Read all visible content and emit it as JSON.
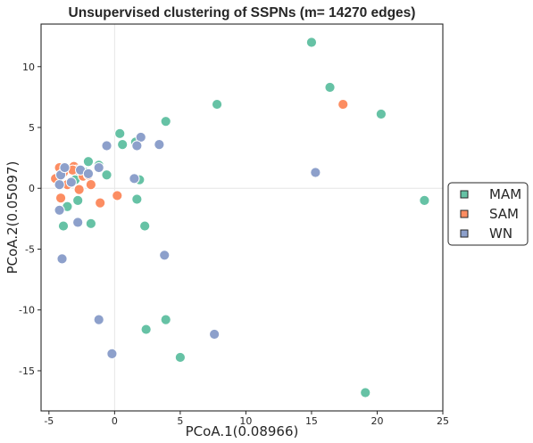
{
  "chart_data": {
    "type": "scatter",
    "title": "Unsupervised clustering of SSPNs (m= 14270 edges)",
    "xlabel": "PCoA.1(0.08966)",
    "ylabel": "PCoA.2(0.05097)",
    "xlim": [
      -5.6,
      25
    ],
    "ylim": [
      -18.3,
      13.5
    ],
    "xticks": [
      "-5",
      "0",
      "5",
      "10",
      "15",
      "20",
      "25"
    ],
    "xtick_values": [
      -5,
      0,
      5,
      10,
      15,
      20,
      25
    ],
    "yticks": [
      "-15",
      "-10",
      "-5",
      "0",
      "5",
      "10"
    ],
    "ytick_values": [
      -15,
      -10,
      -5,
      0,
      5,
      10
    ],
    "reference_lines": {
      "x": 0,
      "y": 0
    },
    "grid": false,
    "legend_position": "right",
    "series": [
      {
        "name": "MAM",
        "color": "#66c2a5",
        "points": [
          [
            15.0,
            12.0
          ],
          [
            16.4,
            8.3
          ],
          [
            20.3,
            6.1
          ],
          [
            7.8,
            6.9
          ],
          [
            23.6,
            -1.0
          ],
          [
            0.4,
            4.5
          ],
          [
            3.9,
            5.5
          ],
          [
            0.6,
            3.6
          ],
          [
            1.6,
            3.8
          ],
          [
            -0.6,
            1.1
          ],
          [
            -1.2,
            1.9
          ],
          [
            -2.0,
            2.2
          ],
          [
            1.9,
            0.7
          ],
          [
            1.7,
            -0.9
          ],
          [
            2.3,
            -3.1
          ],
          [
            -3.6,
            -1.5
          ],
          [
            -2.8,
            -1.0
          ],
          [
            -3.9,
            -3.1
          ],
          [
            -1.8,
            -2.9
          ],
          [
            3.9,
            -10.8
          ],
          [
            2.4,
            -11.6
          ],
          [
            5.0,
            -13.9
          ],
          [
            19.1,
            -16.8
          ],
          [
            -3.0,
            0.7
          ],
          [
            -2.2,
            1.3
          ]
        ]
      },
      {
        "name": "SAM",
        "color": "#fc8d62",
        "points": [
          [
            17.4,
            6.9
          ],
          [
            -4.2,
            1.7
          ],
          [
            -3.1,
            1.8
          ],
          [
            -2.9,
            1.5
          ],
          [
            -4.5,
            0.8
          ],
          [
            -3.6,
            0.3
          ],
          [
            -2.7,
            -0.1
          ],
          [
            -1.8,
            0.3
          ],
          [
            -4.1,
            -0.8
          ],
          [
            -1.1,
            -1.2
          ],
          [
            0.2,
            -0.6
          ],
          [
            -3.2,
            1.5
          ],
          [
            -2.4,
            1.0
          ],
          [
            -3.9,
            1.3
          ],
          [
            -2.0,
            1.1
          ]
        ]
      },
      {
        "name": "WN",
        "color": "#8da0cb",
        "points": [
          [
            15.3,
            1.3
          ],
          [
            2.0,
            4.2
          ],
          [
            -0.6,
            3.5
          ],
          [
            1.7,
            3.5
          ],
          [
            3.4,
            3.6
          ],
          [
            -1.2,
            1.7
          ],
          [
            1.5,
            0.8
          ],
          [
            -4.2,
            0.3
          ],
          [
            -4.1,
            1.1
          ],
          [
            -3.8,
            1.7
          ],
          [
            -2.6,
            1.5
          ],
          [
            -3.3,
            0.5
          ],
          [
            -4.2,
            -1.8
          ],
          [
            -2.8,
            -2.8
          ],
          [
            -4.0,
            -5.8
          ],
          [
            3.8,
            -5.5
          ],
          [
            -1.2,
            -10.8
          ],
          [
            7.6,
            -12.0
          ],
          [
            -0.2,
            -13.6
          ],
          [
            -2.0,
            1.2
          ]
        ]
      }
    ]
  }
}
